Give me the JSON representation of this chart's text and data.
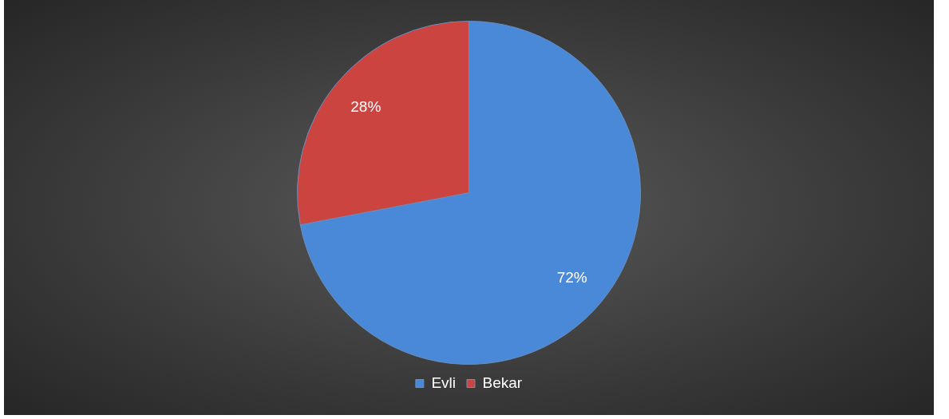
{
  "chart_data": {
    "type": "pie",
    "categories": [
      "Evli",
      "Bekar"
    ],
    "values": [
      72,
      28
    ],
    "colors": [
      "#4a88d8",
      "#cc4440"
    ],
    "value_labels": [
      "72%",
      "28%"
    ],
    "legend": "bottom"
  }
}
